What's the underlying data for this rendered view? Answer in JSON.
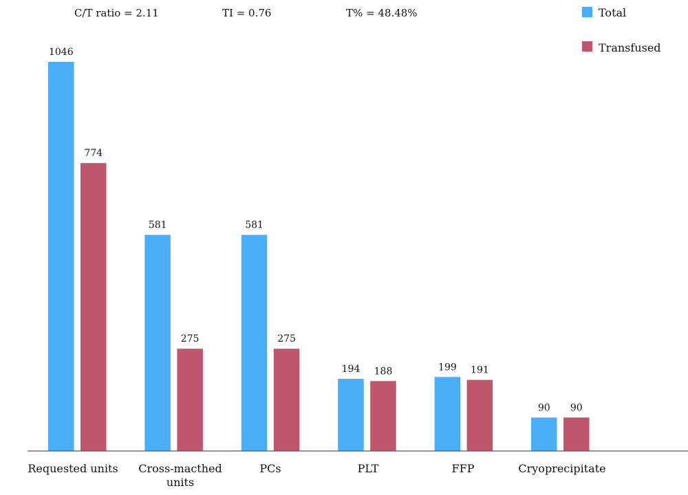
{
  "annotations": {
    "ct_ratio": "C/T ratio = 2.11",
    "ti": "TI = 0.76",
    "t_percent": "T% = 48.48%"
  },
  "colors": {
    "total": "#4aaef7",
    "transfused": "#c0566d",
    "axis": "#555555"
  },
  "chart_data": {
    "type": "bar",
    "categories": [
      "Requested units",
      "Cross-macthed units",
      "PCs",
      "PLT",
      "FFP",
      "Cryoprecipitate"
    ],
    "series": [
      {
        "name": "Total",
        "values": [
          1046,
          581,
          581,
          194,
          199,
          90
        ]
      },
      {
        "name": "Transfused",
        "values": [
          774,
          275,
          275,
          188,
          191,
          90
        ]
      }
    ],
    "title": "",
    "xlabel": "",
    "ylabel": "",
    "ylim": [
      0,
      1046
    ],
    "grid": false,
    "legend": "top-right"
  }
}
